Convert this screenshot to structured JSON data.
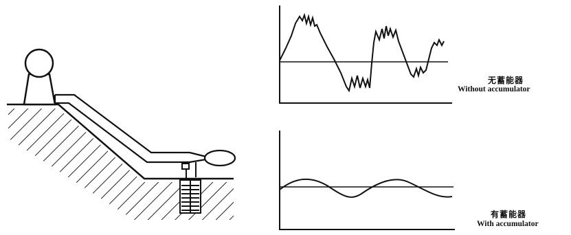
{
  "captions": {
    "without": {
      "zh": "无蓄能器",
      "en": "Without accumulator"
    },
    "with": {
      "zh": "有蓄能器",
      "en": "With accumulator"
    }
  }
}
